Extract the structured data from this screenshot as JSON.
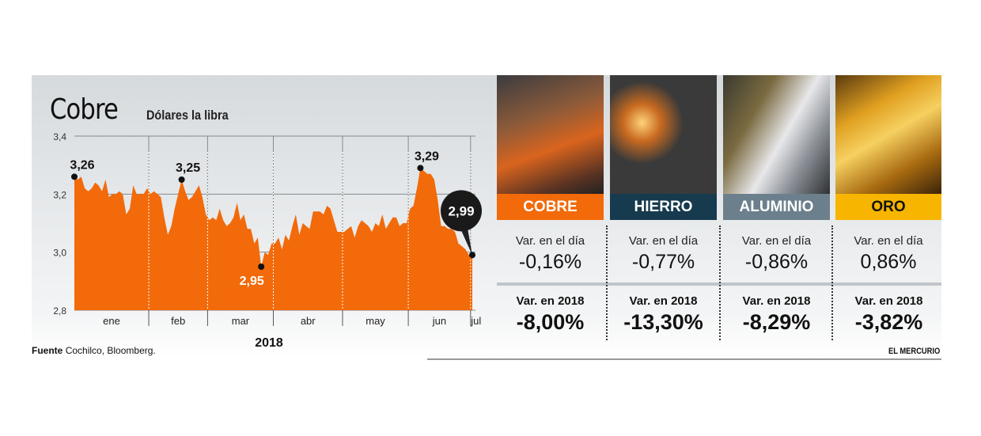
{
  "header": {
    "title": "Cobre",
    "subtitle": "Dólares la libra"
  },
  "footer": {
    "source_label": "Fuente",
    "source": "Cochilco, Bloomberg.",
    "brand": "EL MERCURIO"
  },
  "colors": {
    "cobre": "#f26a0a",
    "hierro": "#163a4e",
    "aluminio": "#6b7f8c",
    "oro": "#f7b500"
  },
  "chart_data": {
    "type": "area",
    "title": "Cobre",
    "ylabel": "Dólares la libra",
    "xlabel": "2018",
    "ylim": [
      2.8,
      3.4
    ],
    "yticks": [
      "2,8",
      "3,0",
      "3,2",
      "3,4"
    ],
    "ytick_values": [
      2.8,
      3.0,
      3.2,
      3.4
    ],
    "grid": true,
    "color": "#f26a0a",
    "months": [
      {
        "label": "ene",
        "values": [
          3.26,
          3.25,
          3.26,
          3.22,
          3.21,
          3.22,
          3.24,
          3.23,
          3.21,
          3.25,
          3.19,
          3.2,
          3.2,
          3.21,
          3.2,
          3.13,
          3.15,
          3.23,
          3.2,
          3.2,
          3.2,
          3.22
        ]
      },
      {
        "label": "feb",
        "values": [
          3.2,
          3.21,
          3.2,
          3.19,
          3.12,
          3.06,
          3.09,
          3.15,
          3.2,
          3.25,
          3.21,
          3.18,
          3.19,
          3.21,
          3.23,
          3.19,
          3.13
        ]
      },
      {
        "label": "mar",
        "values": [
          3.11,
          3.12,
          3.11,
          3.15,
          3.11,
          3.09,
          3.1,
          3.12,
          3.17,
          3.11,
          3.13,
          3.08,
          3.08,
          3.03,
          3.05,
          2.95,
          3.0,
          2.99,
          3.03
        ]
      },
      {
        "label": "abr",
        "values": [
          3.03,
          3.05,
          3.01,
          3.06,
          3.04,
          3.09,
          3.13,
          3.06,
          3.1,
          3.09,
          3.08,
          3.14,
          3.14,
          3.14,
          3.13,
          3.16,
          3.15,
          3.11,
          3.07,
          3.07
        ]
      },
      {
        "label": "may",
        "values": [
          3.07,
          3.08,
          3.09,
          3.05,
          3.09,
          3.11,
          3.1,
          3.09,
          3.07,
          3.1,
          3.09,
          3.13,
          3.08,
          3.1,
          3.12,
          3.12,
          3.09,
          3.1,
          3.1
        ]
      },
      {
        "label": "jun",
        "values": [
          3.15,
          3.16,
          3.22,
          3.29,
          3.28,
          3.27,
          3.27,
          3.25,
          3.18,
          3.09,
          3.09,
          3.08,
          3.08,
          3.07,
          3.03,
          3.02,
          3.01,
          2.99
        ]
      },
      {
        "label": "jul",
        "values": [
          2.99
        ]
      }
    ],
    "annotations": [
      {
        "label": "3,26",
        "month": 0,
        "index": 0,
        "value": 3.26
      },
      {
        "label": "3,25",
        "month": 1,
        "index": 9,
        "value": 3.25
      },
      {
        "label": "2,95",
        "month": 2,
        "index": 15,
        "value": 2.95
      },
      {
        "label": "3,29",
        "month": 5,
        "index": 3,
        "value": 3.29
      },
      {
        "label": "2,99",
        "month": 6,
        "index": 0,
        "value": 2.99,
        "highlight": true
      }
    ]
  },
  "metals": [
    {
      "name": "COBRE",
      "day_label": "Var. en el día",
      "day": "-0,16%",
      "year_label": "Var. en 2018",
      "year": "-8,00%"
    },
    {
      "name": "HIERRO",
      "day_label": "Var. en el día",
      "day": "-0,77%",
      "year_label": "Var. en 2018",
      "year": "-13,30%"
    },
    {
      "name": "ALUMINIO",
      "day_label": "Var. en el día",
      "day": "-0,86%",
      "year_label": "Var. en 2018",
      "year": "-8,29%"
    },
    {
      "name": "ORO",
      "day_label": "Var. en el día",
      "day": "0,86%",
      "year_label": "Var. en 2018",
      "year": "-3,82%"
    }
  ]
}
